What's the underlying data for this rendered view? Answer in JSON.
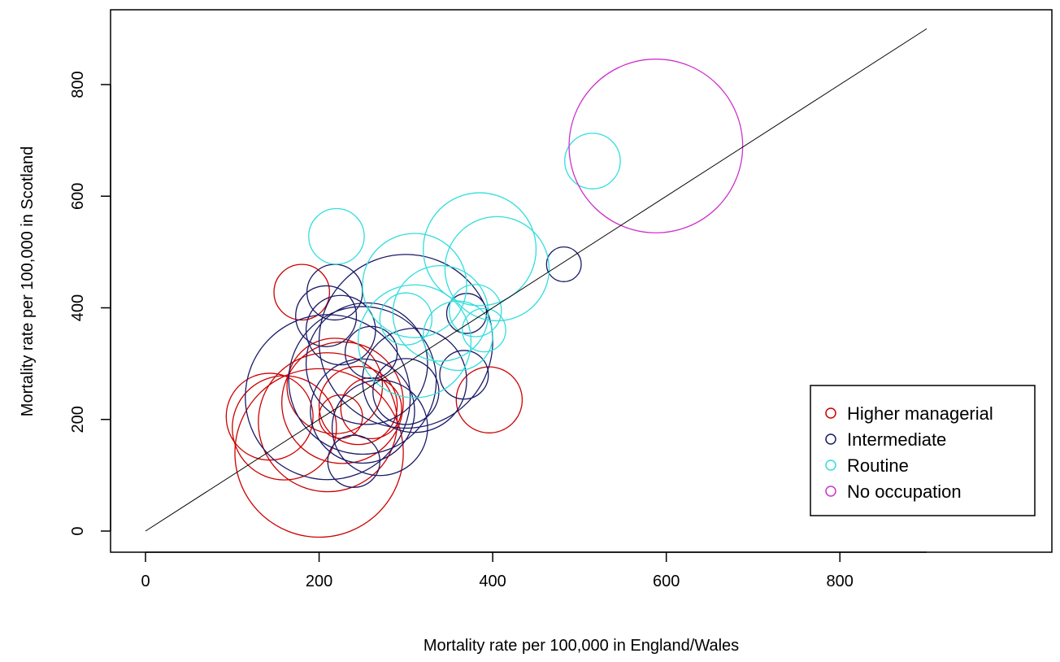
{
  "chart_data": {
    "type": "scatter",
    "xlabel": "Mortality rate per 100,000 in England/Wales",
    "ylabel": "Mortality rate per 100,000 in Scotland",
    "xlim": [
      -35,
      935
    ],
    "ylim": [
      -35,
      935
    ],
    "xticks": [
      0,
      200,
      400,
      600,
      800
    ],
    "yticks": [
      0,
      200,
      400,
      600,
      800
    ],
    "reference_line": {
      "from": [
        0,
        0
      ],
      "to": [
        900,
        900
      ],
      "color": "#000000"
    },
    "legend_position": "bottom-right",
    "series": [
      {
        "name": "Higher managerial",
        "color": "#cc0000",
        "points": [
          {
            "x": 180,
            "y": 428,
            "r": 32
          },
          {
            "x": 143,
            "y": 205,
            "r": 50
          },
          {
            "x": 160,
            "y": 185,
            "r": 60
          },
          {
            "x": 200,
            "y": 140,
            "r": 97
          },
          {
            "x": 210,
            "y": 195,
            "r": 80
          },
          {
            "x": 227,
            "y": 230,
            "r": 70
          },
          {
            "x": 218,
            "y": 260,
            "r": 55
          },
          {
            "x": 225,
            "y": 205,
            "r": 25
          },
          {
            "x": 245,
            "y": 225,
            "r": 45
          },
          {
            "x": 260,
            "y": 220,
            "r": 35
          },
          {
            "x": 396,
            "y": 235,
            "r": 38
          }
        ]
      },
      {
        "name": "Intermediate",
        "color": "#1a1a66",
        "points": [
          {
            "x": 218,
            "y": 428,
            "r": 32
          },
          {
            "x": 208,
            "y": 385,
            "r": 35
          },
          {
            "x": 225,
            "y": 360,
            "r": 40
          },
          {
            "x": 210,
            "y": 240,
            "r": 95
          },
          {
            "x": 250,
            "y": 270,
            "r": 85
          },
          {
            "x": 300,
            "y": 340,
            "r": 100
          },
          {
            "x": 255,
            "y": 300,
            "r": 70
          },
          {
            "x": 260,
            "y": 320,
            "r": 30
          },
          {
            "x": 250,
            "y": 215,
            "r": 60
          },
          {
            "x": 270,
            "y": 185,
            "r": 55
          },
          {
            "x": 240,
            "y": 125,
            "r": 30
          },
          {
            "x": 300,
            "y": 250,
            "r": 38
          },
          {
            "x": 310,
            "y": 270,
            "r": 60
          },
          {
            "x": 370,
            "y": 390,
            "r": 23
          },
          {
            "x": 367,
            "y": 280,
            "r": 28
          },
          {
            "x": 482,
            "y": 478,
            "r": 20
          }
        ]
      },
      {
        "name": "Routine",
        "color": "#33dddd",
        "points": [
          {
            "x": 220,
            "y": 528,
            "r": 32
          },
          {
            "x": 310,
            "y": 340,
            "r": 65
          },
          {
            "x": 310,
            "y": 440,
            "r": 60
          },
          {
            "x": 340,
            "y": 390,
            "r": 55
          },
          {
            "x": 360,
            "y": 350,
            "r": 40
          },
          {
            "x": 300,
            "y": 380,
            "r": 30
          },
          {
            "x": 385,
            "y": 505,
            "r": 65
          },
          {
            "x": 405,
            "y": 470,
            "r": 60
          },
          {
            "x": 380,
            "y": 395,
            "r": 30
          },
          {
            "x": 390,
            "y": 360,
            "r": 25
          },
          {
            "x": 515,
            "y": 663,
            "r": 32
          }
        ]
      },
      {
        "name": "No occupation",
        "color": "#cc33cc",
        "points": [
          {
            "x": 588,
            "y": 690,
            "r": 100
          }
        ]
      }
    ]
  }
}
